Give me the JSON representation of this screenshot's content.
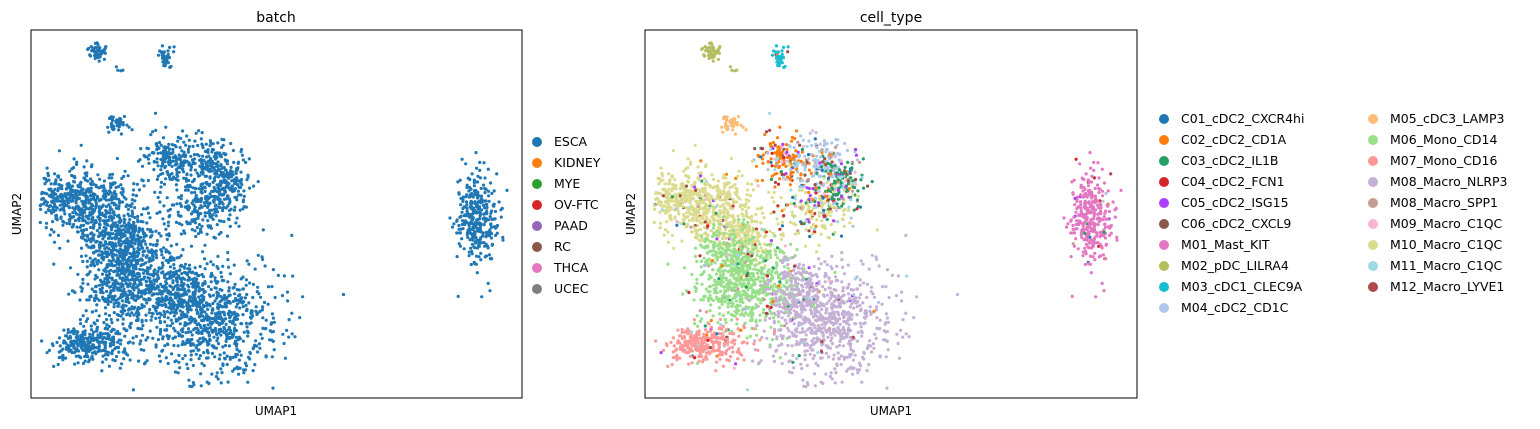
{
  "chart_data": [
    {
      "type": "scatter",
      "title": "batch",
      "xlabel": "UMAP1",
      "ylabel": "UMAP2",
      "grid": false,
      "xticks": false,
      "yticks": false,
      "legend_position": "right",
      "legend": [
        {
          "label": "ESCA",
          "color": "#1f77b4"
        },
        {
          "label": "KIDNEY",
          "color": "#ff7f0e"
        },
        {
          "label": "MYE",
          "color": "#2ca02c"
        },
        {
          "label": "OV-FTC",
          "color": "#d62728"
        },
        {
          "label": "PAAD",
          "color": "#9467bd"
        },
        {
          "label": "RC",
          "color": "#8c564b"
        },
        {
          "label": "THCA",
          "color": "#e377c2"
        },
        {
          "label": "UCEC",
          "color": "#7f7f7f"
        }
      ]
    },
    {
      "type": "scatter",
      "title": "cell_type",
      "xlabel": "UMAP1",
      "ylabel": "UMAP2",
      "grid": false,
      "xticks": false,
      "yticks": false,
      "legend_position": "right",
      "legend": [
        {
          "label": "C01_cDC2_CXCR4hi",
          "color": "#1f77b4"
        },
        {
          "label": "C02_cDC2_CD1A",
          "color": "#ff7f0e"
        },
        {
          "label": "C03_cDC2_IL1B",
          "color": "#279e68"
        },
        {
          "label": "C04_cDC2_FCN1",
          "color": "#d62728"
        },
        {
          "label": "C05_cDC2_ISG15",
          "color": "#aa40fc"
        },
        {
          "label": "C06_cDC2_CXCL9",
          "color": "#8c564b"
        },
        {
          "label": "M01_Mast_KIT",
          "color": "#e377c2"
        },
        {
          "label": "M02_pDC_LILRA4",
          "color": "#b5bd61"
        },
        {
          "label": "M03_cDC1_CLEC9A",
          "color": "#17becf"
        },
        {
          "label": "M04_cDC2_CD1C",
          "color": "#aec7e8"
        },
        {
          "label": "M05_cDC3_LAMP3",
          "color": "#ffbb78"
        },
        {
          "label": "M06_Mono_CD14",
          "color": "#98df8a"
        },
        {
          "label": "M07_Mono_CD16",
          "color": "#ff9896"
        },
        {
          "label": "M08_Macro_NLRP3",
          "color": "#c5b0d5"
        },
        {
          "label": "M08_Macro_SPP1",
          "color": "#c49c94"
        },
        {
          "label": "M09_Macro_C1QC",
          "color": "#f7b6d2"
        },
        {
          "label": "M10_Macro_C1QC",
          "color": "#dbdb8d"
        },
        {
          "label": "M11_Macro_C1QC",
          "color": "#9edae5"
        },
        {
          "label": "M12_Macro_LYVE1",
          "color": "#ad494a"
        }
      ]
    }
  ]
}
